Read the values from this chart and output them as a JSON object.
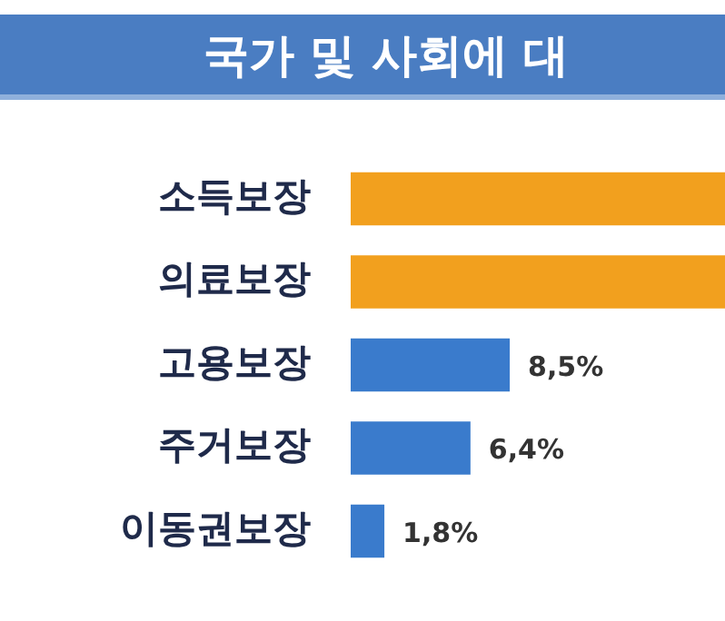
{
  "chart_data": {
    "type": "bar",
    "orientation": "horizontal",
    "title": "국가 및 사회에 대",
    "categories": [
      "소득보장",
      "의료보장",
      "고용보장",
      "주거보장",
      "이동권보장"
    ],
    "values": [
      20,
      20,
      8.5,
      6.4,
      1.8
    ],
    "value_labels": [
      null,
      null,
      "8,5%",
      "6,4%",
      "1,8%"
    ],
    "colors": [
      "#f2a01e",
      "#f2a01e",
      "#3a7bcc",
      "#3a7bcc",
      "#3a7bcc"
    ],
    "xlim": [
      0,
      20
    ],
    "tick_labels": "y"
  }
}
